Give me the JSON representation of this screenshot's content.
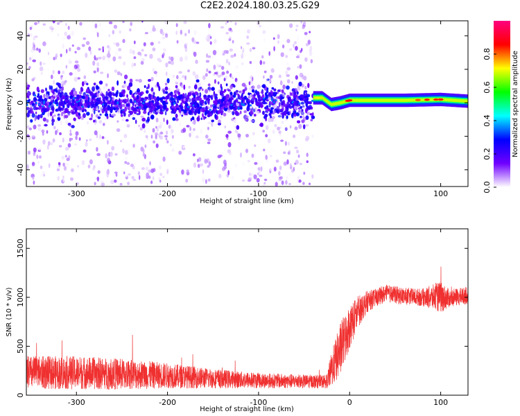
{
  "title": "C2E2.2024.180.03.25.G29",
  "chart_data": [
    {
      "type": "heatmap",
      "title": "",
      "xlabel": "Height of straight line (km)",
      "ylabel": "Frequency (Hz)",
      "xlim": [
        -355,
        130
      ],
      "ylim": [
        -50,
        49
      ],
      "xticks": [
        -300,
        -200,
        -100,
        0,
        100
      ],
      "yticks": [
        -40,
        -20,
        0,
        20,
        40
      ],
      "noise_region_x": [
        -355,
        -40
      ],
      "signal_track": [
        {
          "x": -40,
          "y": 3
        },
        {
          "x": -30,
          "y": 3
        },
        {
          "x": -20,
          "y": -1
        },
        {
          "x": -10,
          "y": 0
        },
        {
          "x": 0,
          "y": 1.5
        },
        {
          "x": 20,
          "y": 1.5
        },
        {
          "x": 60,
          "y": 1.5
        },
        {
          "x": 100,
          "y": 2
        },
        {
          "x": 130,
          "y": 1
        }
      ],
      "colorbar": {
        "label": "Normalized spectral amplitude",
        "range": [
          0,
          1
        ],
        "ticks": [
          0.0,
          0.2,
          0.4,
          0.6,
          0.8
        ],
        "colors": [
          "#ffffff",
          "#7000ff",
          "#0000ff",
          "#00ffff",
          "#00ff00",
          "#ffff00",
          "#ff0000",
          "#ff0080"
        ]
      },
      "grid": false
    },
    {
      "type": "line",
      "title": "",
      "xlabel": "Height of straight line (km)",
      "ylabel": "SNR (10 * v/v)",
      "xlim": [
        -355,
        130
      ],
      "ylim": [
        0,
        1700
      ],
      "xticks": [
        -300,
        -200,
        -100,
        0,
        100
      ],
      "yticks": [
        0,
        500,
        1000,
        1500
      ],
      "color": "#f03030",
      "series": [
        {
          "x": [
            -355,
            -300,
            -250,
            -200,
            -150,
            -100,
            -50,
            -25,
            -20,
            -10,
            0,
            10,
            20,
            30,
            40,
            60,
            80,
            100,
            110,
            130
          ],
          "y": [
            230,
            230,
            215,
            200,
            170,
            150,
            140,
            140,
            260,
            470,
            700,
            860,
            960,
            1000,
            1040,
            1010,
            1000,
            1000,
            990,
            1020
          ],
          "spread": [
            170,
            170,
            160,
            130,
            100,
            80,
            70,
            70,
            180,
            280,
            230,
            160,
            110,
            90,
            90,
            90,
            90,
            160,
            90,
            90
          ]
        }
      ],
      "grid": false
    }
  ]
}
